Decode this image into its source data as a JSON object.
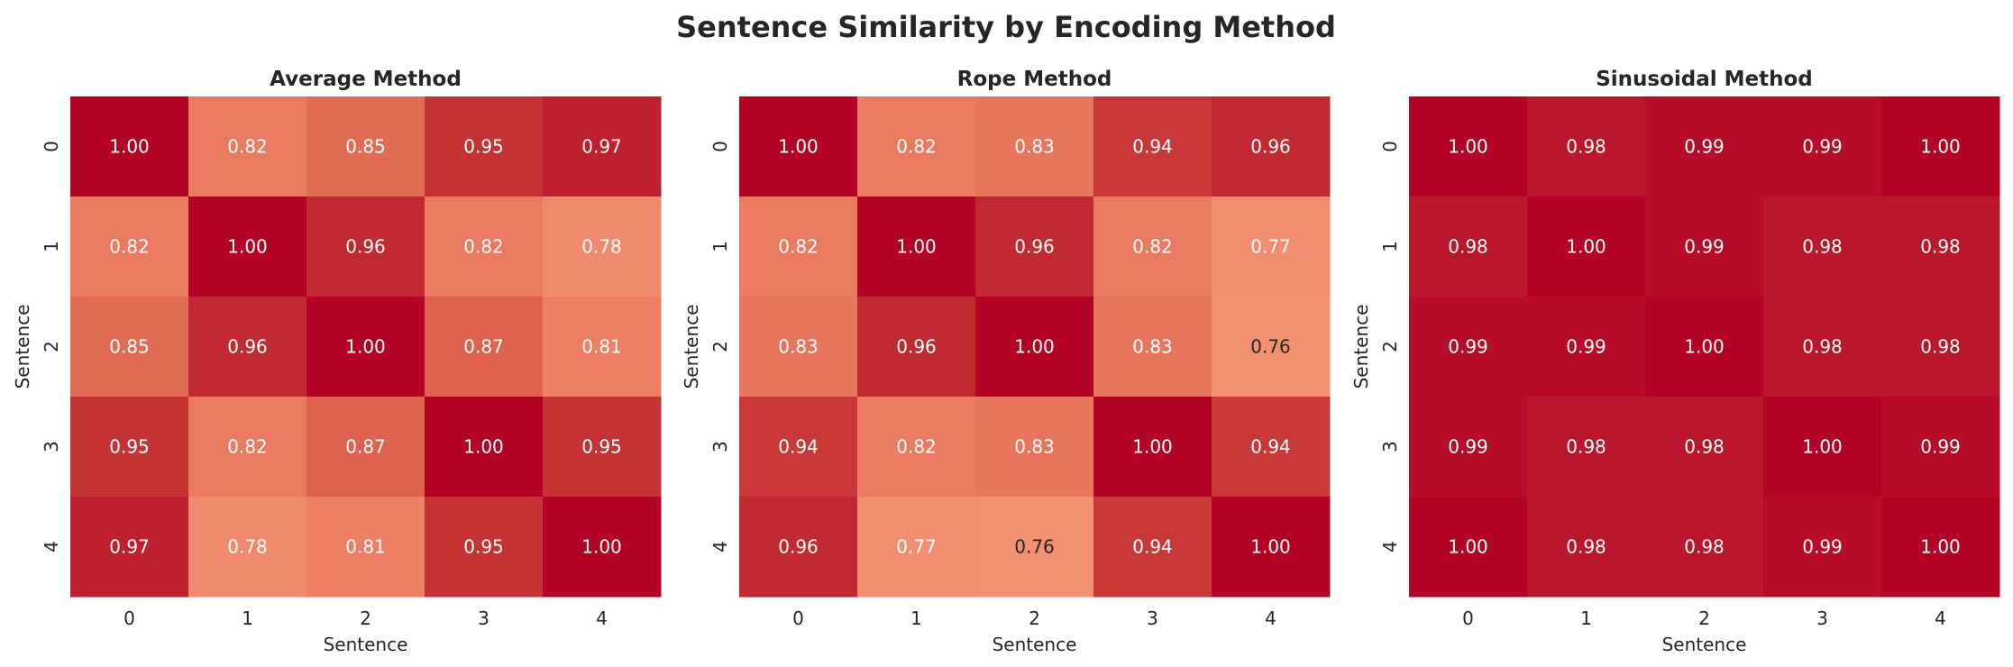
{
  "chart_data": [
    {
      "type": "heatmap",
      "title": "Average Method",
      "xlabel": "Sentence",
      "ylabel": "Sentence",
      "x_ticks": [
        "0",
        "1",
        "2",
        "3",
        "4"
      ],
      "y_ticks": [
        "0",
        "1",
        "2",
        "3",
        "4"
      ],
      "colormap": "coolwarm",
      "vmin": 0,
      "vmax": 1,
      "values": [
        [
          1.0,
          0.82,
          0.85,
          0.95,
          0.97
        ],
        [
          0.82,
          1.0,
          0.96,
          0.82,
          0.78
        ],
        [
          0.85,
          0.96,
          1.0,
          0.87,
          0.81
        ],
        [
          0.95,
          0.82,
          0.87,
          1.0,
          0.95
        ],
        [
          0.97,
          0.78,
          0.81,
          0.95,
          1.0
        ]
      ]
    },
    {
      "type": "heatmap",
      "title": "Rope Method",
      "xlabel": "Sentence",
      "ylabel": "Sentence",
      "x_ticks": [
        "0",
        "1",
        "2",
        "3",
        "4"
      ],
      "y_ticks": [
        "0",
        "1",
        "2",
        "3",
        "4"
      ],
      "colormap": "coolwarm",
      "vmin": 0,
      "vmax": 1,
      "values": [
        [
          1.0,
          0.82,
          0.83,
          0.94,
          0.96
        ],
        [
          0.82,
          1.0,
          0.96,
          0.82,
          0.77
        ],
        [
          0.83,
          0.96,
          1.0,
          0.83,
          0.76
        ],
        [
          0.94,
          0.82,
          0.83,
          1.0,
          0.94
        ],
        [
          0.96,
          0.77,
          0.76,
          0.94,
          1.0
        ]
      ]
    },
    {
      "type": "heatmap",
      "title": "Sinusoidal Method",
      "xlabel": "Sentence",
      "ylabel": "Sentence",
      "x_ticks": [
        "0",
        "1",
        "2",
        "3",
        "4"
      ],
      "y_ticks": [
        "0",
        "1",
        "2",
        "3",
        "4"
      ],
      "colormap": "coolwarm",
      "vmin": 0,
      "vmax": 1,
      "values": [
        [
          1.0,
          0.98,
          0.99,
          0.99,
          1.0
        ],
        [
          0.98,
          1.0,
          0.99,
          0.98,
          0.98
        ],
        [
          0.99,
          0.99,
          1.0,
          0.98,
          0.98
        ],
        [
          0.99,
          0.98,
          0.98,
          1.0,
          0.99
        ],
        [
          1.0,
          0.98,
          0.98,
          0.99,
          1.0
        ]
      ]
    }
  ],
  "figure": {
    "title": "Sentence Similarity by Encoding Method"
  }
}
